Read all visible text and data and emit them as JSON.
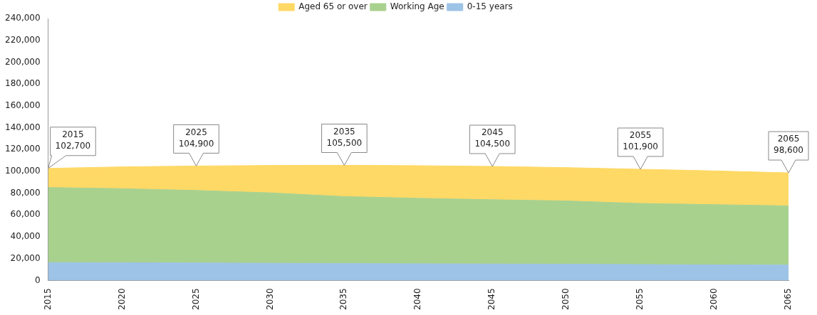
{
  "chart_data": {
    "type": "area",
    "stacked": true,
    "x": [
      2015,
      2020,
      2025,
      2030,
      2035,
      2040,
      2045,
      2050,
      2055,
      2060,
      2065
    ],
    "series": [
      {
        "name": "0-15 years",
        "color": "#9dc3e6",
        "values": [
          16400,
          16300,
          16100,
          15800,
          15500,
          15300,
          15100,
          14900,
          14600,
          14300,
          14100
        ]
      },
      {
        "name": "Working Age",
        "color": "#a9d18e",
        "values": [
          68800,
          67800,
          66400,
          64500,
          61400,
          60000,
          58900,
          58000,
          56000,
          55200,
          54300
        ]
      },
      {
        "name": "Aged 65 or over",
        "color": "#ffd966",
        "values": [
          17500,
          20000,
          22400,
          25100,
          28600,
          29900,
          30500,
          30500,
          31300,
          30900,
          30200
        ]
      }
    ],
    "xlim": [
      2015,
      2065
    ],
    "xticks": [
      2015,
      2020,
      2025,
      2030,
      2035,
      2040,
      2045,
      2050,
      2055,
      2060,
      2065
    ],
    "ylim": [
      0,
      240000
    ],
    "yticks": [
      0,
      {
        "value": 20000,
        "label": "20,000"
      },
      {
        "value": 40000,
        "label": "40,000"
      },
      {
        "value": 60000,
        "label": "60,000"
      },
      {
        "value": 80000,
        "label": "80,000"
      },
      {
        "value": 100000,
        "label": "100,000"
      },
      {
        "value": 120000,
        "label": "120,000"
      },
      {
        "value": 140000,
        "label": "140,000"
      },
      {
        "value": 160000,
        "label": "160,000"
      },
      {
        "value": 180000,
        "label": "180,000"
      },
      {
        "value": 200000,
        "label": "200,000"
      },
      {
        "value": 220000,
        "label": "220,000"
      },
      {
        "value": 240000,
        "label": "240,000"
      }
    ],
    "grid": false,
    "legend": "top",
    "annotations": [
      {
        "text": "2015\n102,700",
        "x": 2015,
        "y": 102700
      },
      {
        "text": "2025\n104,900",
        "x": 2025,
        "y": 104900
      },
      {
        "text": "2035\n105,500",
        "x": 2035,
        "y": 105500
      },
      {
        "text": "2045\n104,500",
        "x": 2045,
        "y": 104500
      },
      {
        "text": "2055\n101,900",
        "x": 2055,
        "y": 101900
      },
      {
        "text": "2065\n98,600",
        "x": 2065,
        "y": 98600
      }
    ]
  }
}
